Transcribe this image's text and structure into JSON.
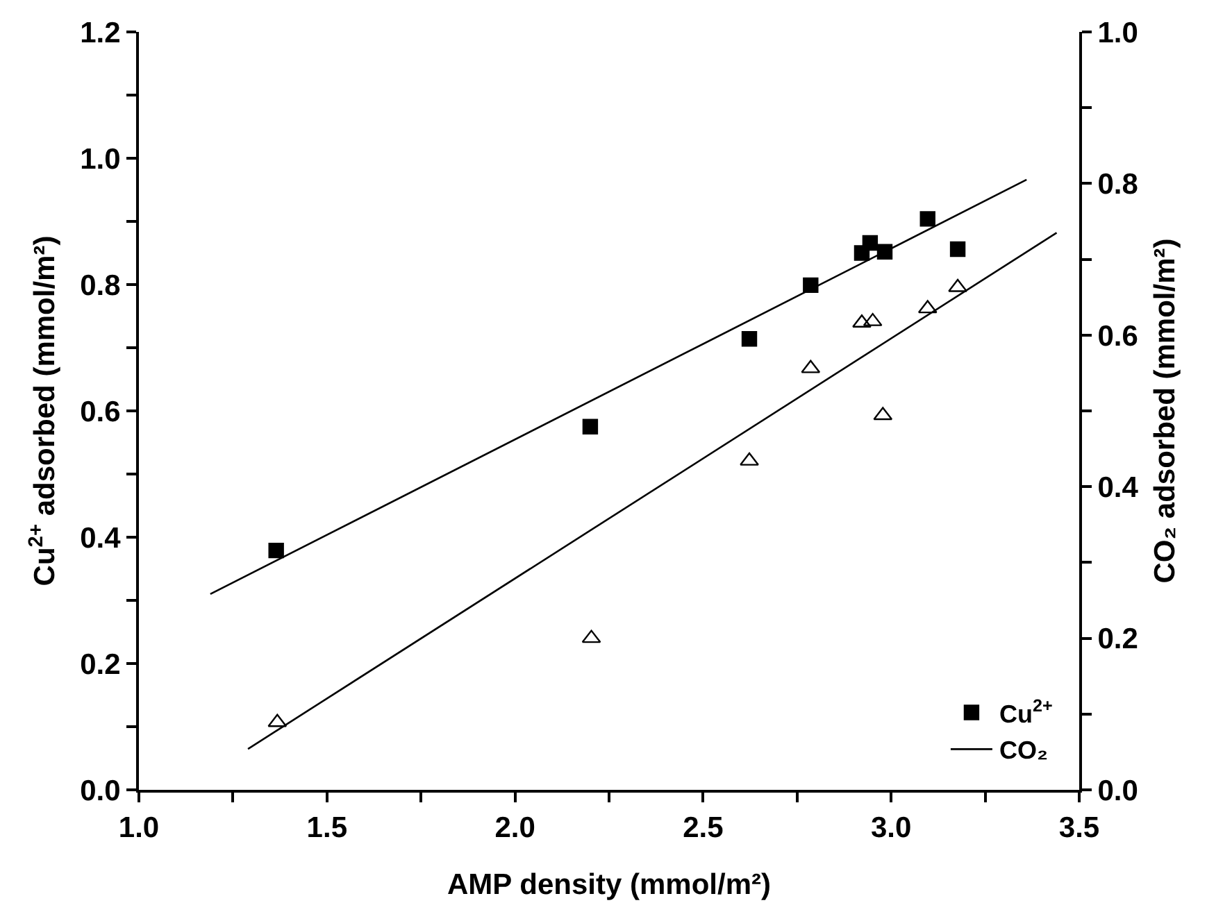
{
  "chart_data": {
    "type": "scatter",
    "xlabel": "AMP density (mmol/m²)",
    "ylabel": "Cu$^{2+}$ adsorbed (mmol/m²)",
    "y2label": "CO₂ adsorbed (mmol/m²)",
    "series": [
      {
        "name": "Cu$^{2+}$",
        "marker": "square",
        "color": "#000000",
        "x": [
          1.365,
          2.2,
          2.623,
          2.786,
          2.922,
          2.944,
          2.983,
          3.097,
          3.177
        ],
        "values": [
          0.379,
          0.575,
          0.714,
          0.799,
          0.85,
          0.866,
          0.852,
          0.904,
          0.856
        ]
      },
      {
        "type": "line",
        "marker": "none",
        "color": "#000000",
        "x": [
          1.19,
          3.36
        ],
        "values": [
          0.31,
          0.966
        ]
      },
      {
        "marker": "triangle",
        "color": "#000000",
        "axis": "y2",
        "x": [
          1.368,
          2.203,
          2.623,
          2.786,
          2.922,
          2.951,
          2.978,
          3.097,
          3.177
        ],
        "values": [
          0.089,
          0.2,
          0.434,
          0.556,
          0.616,
          0.618,
          0.494,
          0.635,
          0.663
        ]
      },
      {
        "name": "CO₂",
        "type": "line",
        "marker": "none",
        "color": "#000000",
        "axis": "y2",
        "x": [
          1.29,
          3.44
        ],
        "values": [
          0.054,
          0.735
        ]
      }
    ],
    "xlim": [
      1.0,
      3.5
    ],
    "xticks": [
      {
        "value": 1.0,
        "label": "1.0"
      },
      {
        "value": 1.25,
        "label": null
      },
      {
        "value": 1.5,
        "label": "1.5"
      },
      {
        "value": 1.75,
        "label": null
      },
      {
        "value": 2.0,
        "label": "2.0"
      },
      {
        "value": 2.25,
        "label": null
      },
      {
        "value": 2.5,
        "label": "2.5"
      },
      {
        "value": 2.75,
        "label": null
      },
      {
        "value": 3.0,
        "label": "3.0"
      },
      {
        "value": 3.25,
        "label": null
      },
      {
        "value": 3.5,
        "label": "3.5"
      }
    ],
    "ylim": [
      0.0,
      1.2
    ],
    "yticks": [
      {
        "value": 0.0,
        "label": "0.0"
      },
      {
        "value": 0.1,
        "label": null
      },
      {
        "value": 0.2,
        "label": "0.2"
      },
      {
        "value": 0.3,
        "label": null
      },
      {
        "value": 0.4,
        "label": "0.4"
      },
      {
        "value": 0.5,
        "label": null
      },
      {
        "value": 0.6,
        "label": "0.6"
      },
      {
        "value": 0.7,
        "label": null
      },
      {
        "value": 0.8,
        "label": "0.8"
      },
      {
        "value": 0.9,
        "label": null
      },
      {
        "value": 1.0,
        "label": "1.0"
      },
      {
        "value": 1.1,
        "label": null
      },
      {
        "value": 1.2,
        "label": "1.2"
      }
    ],
    "y2lim": [
      0.0,
      1.0
    ],
    "y2ticks": [
      {
        "value": 0.0,
        "label": "0.0"
      },
      {
        "value": 0.1,
        "label": null
      },
      {
        "value": 0.2,
        "label": "0.2"
      },
      {
        "value": 0.3,
        "label": null
      },
      {
        "value": 0.4,
        "label": "0.4"
      },
      {
        "value": 0.5,
        "label": null
      },
      {
        "value": 0.6,
        "label": "0.6"
      },
      {
        "value": 0.7,
        "label": null
      },
      {
        "value": 0.8,
        "label": "0.8"
      },
      {
        "value": 0.9,
        "label": null
      },
      {
        "value": 1.0,
        "label": "1.0"
      }
    ],
    "legend": "bottom right"
  }
}
